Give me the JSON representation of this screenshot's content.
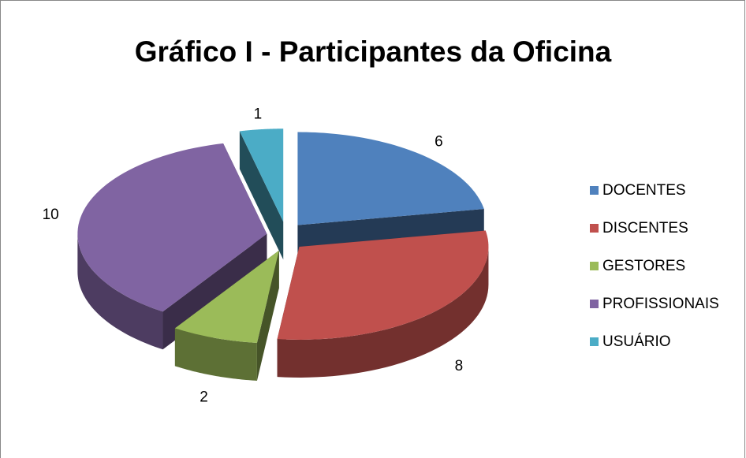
{
  "chart_data": {
    "type": "pie3d",
    "title": "Gráfico I - Participantes da Oficina",
    "categories": [
      "DOCENTES",
      "DISCENTES",
      "GESTORES",
      "PROFISSIONAIS",
      "USUÁRIO"
    ],
    "values": [
      6,
      8,
      2,
      10,
      1
    ],
    "colors": [
      "#4f81bd",
      "#c0504d",
      "#9bbb59",
      "#8064a2",
      "#4bacc6"
    ],
    "legend": "right"
  }
}
